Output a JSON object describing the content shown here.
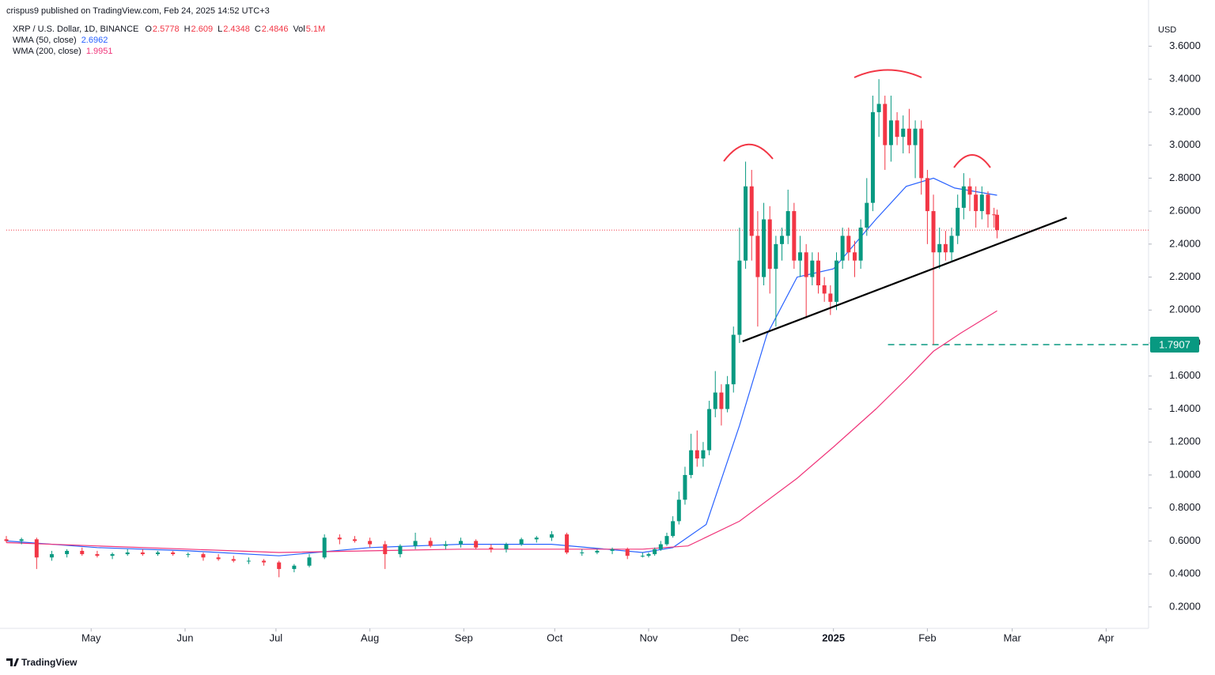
{
  "chart_data": {
    "type": "candlestick",
    "attribution": "crispus9 published on TradingView.com, Feb 24, 2025 14:52 UTC+3",
    "title": "XRP / U.S. Dollar, 1D, BINANCE",
    "ohlc_keys": [
      "O",
      "H",
      "L",
      "C"
    ],
    "volume_key": "Vol",
    "volume": {
      "value": 5100000,
      "label": "5.1M"
    },
    "currency": "USD",
    "brand": "TradingView",
    "up_color": "#089981",
    "down_color": "#f23645",
    "xlim": [
      0,
      377
    ],
    "xticks": [
      {
        "value": 28,
        "label": "May"
      },
      {
        "value": 59,
        "label": "Jun"
      },
      {
        "value": 89,
        "label": "Jul"
      },
      {
        "value": 120,
        "label": "Aug"
      },
      {
        "value": 151,
        "label": "Sep"
      },
      {
        "value": 181,
        "label": "Oct"
      },
      {
        "value": 212,
        "label": "Nov"
      },
      {
        "value": 242,
        "label": "Dec"
      },
      {
        "value": 273,
        "label": "2025"
      },
      {
        "value": 304,
        "label": "Feb"
      },
      {
        "value": 332,
        "label": "Mar"
      },
      {
        "value": 363,
        "label": "Apr"
      }
    ],
    "ylim": [
      0.07,
      3.88
    ],
    "yticks": [
      {
        "value": 0.2,
        "label": "0.2000"
      },
      {
        "value": 0.4,
        "label": "0.4000"
      },
      {
        "value": 0.6,
        "label": "0.6000"
      },
      {
        "value": 0.8,
        "label": "0.8000"
      },
      {
        "value": 1.0,
        "label": "1.0000"
      },
      {
        "value": 1.2,
        "label": "1.2000"
      },
      {
        "value": 1.4,
        "label": "1.4000"
      },
      {
        "value": 1.6,
        "label": "1.6000"
      },
      {
        "value": 1.8,
        "label": "1.8000"
      },
      {
        "value": 2.0,
        "label": "2.0000"
      },
      {
        "value": 2.2,
        "label": "2.2000"
      },
      {
        "value": 2.4,
        "label": "2.4000"
      },
      {
        "value": 2.6,
        "label": "2.6000"
      },
      {
        "value": 2.8,
        "label": "2.8000"
      },
      {
        "value": 3.0,
        "label": "3.0000"
      },
      {
        "value": 3.2,
        "label": "3.2000"
      },
      {
        "value": 3.4,
        "label": "3.4000"
      },
      {
        "value": 3.6,
        "label": "3.6000"
      }
    ],
    "grid": false,
    "candles": {
      "x": [
        0,
        5,
        10,
        15,
        20,
        25,
        30,
        35,
        40,
        45,
        50,
        55,
        60,
        65,
        70,
        75,
        80,
        85,
        90,
        95,
        100,
        105,
        110,
        115,
        120,
        125,
        130,
        135,
        140,
        145,
        150,
        155,
        160,
        165,
        170,
        175,
        180,
        185,
        190,
        195,
        200,
        205,
        210,
        212,
        214,
        216,
        218,
        220,
        222,
        224,
        226,
        228,
        230,
        232,
        234,
        236,
        238,
        240,
        242,
        244,
        246,
        248,
        250,
        252,
        254,
        256,
        258,
        260,
        262,
        264,
        266,
        268,
        270,
        272,
        274,
        276,
        278,
        280,
        282,
        284,
        286,
        288,
        290,
        292,
        294,
        296,
        298,
        300,
        302,
        304,
        306,
        308,
        310,
        312,
        314,
        316,
        318,
        320,
        322,
        324,
        326,
        327
      ],
      "ohlc": [
        [
          0.61,
          0.63,
          0.59,
          0.6
        ],
        [
          0.6,
          0.62,
          0.58,
          0.61
        ],
        [
          0.61,
          0.62,
          0.43,
          0.5
        ],
        [
          0.5,
          0.54,
          0.48,
          0.52
        ],
        [
          0.52,
          0.55,
          0.5,
          0.54
        ],
        [
          0.54,
          0.56,
          0.51,
          0.52
        ],
        [
          0.52,
          0.54,
          0.5,
          0.51
        ],
        [
          0.51,
          0.53,
          0.49,
          0.52
        ],
        [
          0.52,
          0.55,
          0.51,
          0.53
        ],
        [
          0.53,
          0.55,
          0.51,
          0.52
        ],
        [
          0.52,
          0.54,
          0.51,
          0.53
        ],
        [
          0.53,
          0.54,
          0.51,
          0.52
        ],
        [
          0.52,
          0.53,
          0.5,
          0.52
        ],
        [
          0.52,
          0.53,
          0.48,
          0.5
        ],
        [
          0.5,
          0.52,
          0.48,
          0.49
        ],
        [
          0.49,
          0.51,
          0.47,
          0.48
        ],
        [
          0.48,
          0.5,
          0.46,
          0.48
        ],
        [
          0.48,
          0.49,
          0.45,
          0.47
        ],
        [
          0.47,
          0.48,
          0.38,
          0.43
        ],
        [
          0.43,
          0.46,
          0.41,
          0.45
        ],
        [
          0.45,
          0.52,
          0.44,
          0.5
        ],
        [
          0.5,
          0.64,
          0.49,
          0.62
        ],
        [
          0.62,
          0.64,
          0.58,
          0.61
        ],
        [
          0.61,
          0.63,
          0.59,
          0.6
        ],
        [
          0.6,
          0.62,
          0.56,
          0.58
        ],
        [
          0.58,
          0.6,
          0.43,
          0.52
        ],
        [
          0.52,
          0.58,
          0.5,
          0.57
        ],
        [
          0.57,
          0.65,
          0.55,
          0.6
        ],
        [
          0.6,
          0.62,
          0.56,
          0.57
        ],
        [
          0.57,
          0.6,
          0.55,
          0.58
        ],
        [
          0.58,
          0.62,
          0.56,
          0.6
        ],
        [
          0.6,
          0.61,
          0.55,
          0.56
        ],
        [
          0.56,
          0.58,
          0.53,
          0.55
        ],
        [
          0.55,
          0.59,
          0.53,
          0.58
        ],
        [
          0.58,
          0.62,
          0.57,
          0.61
        ],
        [
          0.61,
          0.63,
          0.59,
          0.62
        ],
        [
          0.62,
          0.66,
          0.6,
          0.64
        ],
        [
          0.64,
          0.65,
          0.52,
          0.53
        ],
        [
          0.53,
          0.55,
          0.51,
          0.53
        ],
        [
          0.53,
          0.55,
          0.52,
          0.54
        ],
        [
          0.54,
          0.56,
          0.52,
          0.55
        ],
        [
          0.55,
          0.56,
          0.49,
          0.51
        ],
        [
          0.51,
          0.53,
          0.5,
          0.51
        ],
        [
          0.51,
          0.53,
          0.5,
          0.52
        ],
        [
          0.52,
          0.56,
          0.51,
          0.55
        ],
        [
          0.55,
          0.6,
          0.54,
          0.58
        ],
        [
          0.58,
          0.65,
          0.57,
          0.63
        ],
        [
          0.63,
          0.75,
          0.62,
          0.72
        ],
        [
          0.72,
          0.9,
          0.7,
          0.85
        ],
        [
          0.85,
          1.05,
          0.82,
          1.0
        ],
        [
          1.0,
          1.25,
          0.98,
          1.15
        ],
        [
          1.15,
          1.27,
          1.05,
          1.1
        ],
        [
          1.1,
          1.2,
          1.05,
          1.15
        ],
        [
          1.15,
          1.45,
          1.12,
          1.4
        ],
        [
          1.4,
          1.63,
          1.35,
          1.5
        ],
        [
          1.5,
          1.55,
          1.3,
          1.4
        ],
        [
          1.4,
          1.6,
          1.38,
          1.55
        ],
        [
          1.55,
          1.9,
          1.5,
          1.85
        ],
        [
          1.85,
          2.5,
          1.8,
          2.3
        ],
        [
          2.3,
          2.9,
          2.25,
          2.75
        ],
        [
          2.75,
          2.85,
          2.3,
          2.45
        ],
        [
          2.45,
          2.6,
          1.9,
          2.2
        ],
        [
          2.2,
          2.65,
          2.15,
          2.55
        ],
        [
          2.55,
          2.63,
          2.1,
          2.25
        ],
        [
          2.25,
          2.45,
          1.9,
          2.4
        ],
        [
          2.4,
          2.5,
          2.3,
          2.45
        ],
        [
          2.45,
          2.73,
          2.4,
          2.6
        ],
        [
          2.6,
          2.65,
          2.25,
          2.3
        ],
        [
          2.3,
          2.45,
          2.2,
          2.35
        ],
        [
          2.35,
          2.4,
          1.95,
          2.2
        ],
        [
          2.2,
          2.35,
          2.15,
          2.3
        ],
        [
          2.3,
          2.35,
          2.1,
          2.15
        ],
        [
          2.15,
          2.2,
          2.05,
          2.1
        ],
        [
          2.1,
          2.15,
          1.97,
          2.05
        ],
        [
          2.05,
          2.35,
          2.0,
          2.3
        ],
        [
          2.3,
          2.5,
          2.25,
          2.45
        ],
        [
          2.45,
          2.5,
          2.3,
          2.35
        ],
        [
          2.35,
          2.42,
          2.2,
          2.3
        ],
        [
          2.3,
          2.55,
          2.25,
          2.5
        ],
        [
          2.5,
          2.8,
          2.45,
          2.65
        ],
        [
          2.65,
          3.3,
          2.6,
          3.2
        ],
        [
          3.2,
          3.4,
          3.05,
          3.25
        ],
        [
          3.25,
          3.3,
          2.85,
          3.0
        ],
        [
          3.0,
          3.3,
          2.9,
          3.15
        ],
        [
          3.15,
          3.2,
          3.0,
          3.05
        ],
        [
          3.05,
          3.18,
          2.95,
          3.1
        ],
        [
          3.1,
          3.22,
          2.95,
          3.0
        ],
        [
          3.0,
          3.15,
          2.8,
          3.1
        ],
        [
          3.1,
          3.15,
          2.7,
          2.8
        ],
        [
          2.8,
          2.85,
          2.4,
          2.6
        ],
        [
          2.6,
          2.7,
          1.79,
          2.35
        ],
        [
          2.35,
          2.5,
          2.25,
          2.4
        ],
        [
          2.4,
          2.48,
          2.3,
          2.35
        ],
        [
          2.35,
          2.5,
          2.3,
          2.45
        ],
        [
          2.45,
          2.7,
          2.4,
          2.62
        ],
        [
          2.62,
          2.83,
          2.55,
          2.75
        ],
        [
          2.75,
          2.8,
          2.6,
          2.7
        ],
        [
          2.7,
          2.75,
          2.5,
          2.6
        ],
        [
          2.6,
          2.75,
          2.55,
          2.7
        ],
        [
          2.7,
          2.72,
          2.5,
          2.58
        ],
        [
          2.58,
          2.62,
          2.5,
          2.5778
        ],
        [
          2.5778,
          2.609,
          2.4348,
          2.4846
        ]
      ]
    },
    "series": [
      {
        "name": "WMA (50, close)",
        "color": "#2962ff",
        "x": [
          0,
          30,
          60,
          90,
          120,
          150,
          180,
          210,
          220,
          231,
          242,
          251,
          261,
          273,
          287,
          297,
          306,
          313,
          327
        ],
        "values": [
          0.6,
          0.56,
          0.54,
          0.51,
          0.56,
          0.58,
          0.58,
          0.53,
          0.56,
          0.7,
          1.3,
          1.85,
          2.2,
          2.25,
          2.55,
          2.75,
          2.8,
          2.74,
          2.6962
        ]
      },
      {
        "name": "WMA (200, close)",
        "color": "#f0357a",
        "x": [
          0,
          30,
          60,
          90,
          120,
          150,
          180,
          210,
          225,
          242,
          261,
          273,
          287,
          297,
          306,
          315,
          327
        ],
        "values": [
          0.59,
          0.57,
          0.55,
          0.53,
          0.54,
          0.55,
          0.55,
          0.55,
          0.57,
          0.72,
          0.98,
          1.17,
          1.4,
          1.58,
          1.75,
          1.86,
          1.9951
        ]
      }
    ],
    "level": {
      "value": 1.7907,
      "x_start": 291,
      "color": "#089981"
    },
    "trendline": {
      "x": [
        243,
        350
      ],
      "values": [
        1.81,
        2.56
      ]
    }
  }
}
